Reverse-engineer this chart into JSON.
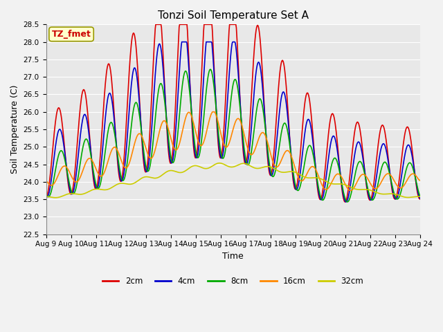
{
  "title": "Tonzi Soil Temperature Set A",
  "xlabel": "Time",
  "ylabel": "Soil Temperature (C)",
  "annotation": "TZ_fmet",
  "ylim": [
    22.5,
    28.5
  ],
  "yticks": [
    22.5,
    23.0,
    23.5,
    24.0,
    24.5,
    25.0,
    25.5,
    26.0,
    26.5,
    27.0,
    27.5,
    28.0,
    28.5
  ],
  "xtick_labels": [
    "Aug 9",
    "Aug 10",
    "Aug 11",
    "Aug 12",
    "Aug 13",
    "Aug 14",
    "Aug 15",
    "Aug 16",
    "Aug 17",
    "Aug 18",
    "Aug 19",
    "Aug 20",
    "Aug 21",
    "Aug 22",
    "Aug 23",
    "Aug 24"
  ],
  "colors": {
    "2cm": "#dd0000",
    "4cm": "#0000cc",
    "8cm": "#00aa00",
    "16cm": "#ff8800",
    "32cm": "#cccc00"
  },
  "bg_color": "#e8e8e8",
  "fig_bg_color": "#f2f2f2",
  "grid_color": "#ffffff",
  "title_fontsize": 11,
  "axis_fontsize": 9,
  "tick_fontsize": 7.5
}
